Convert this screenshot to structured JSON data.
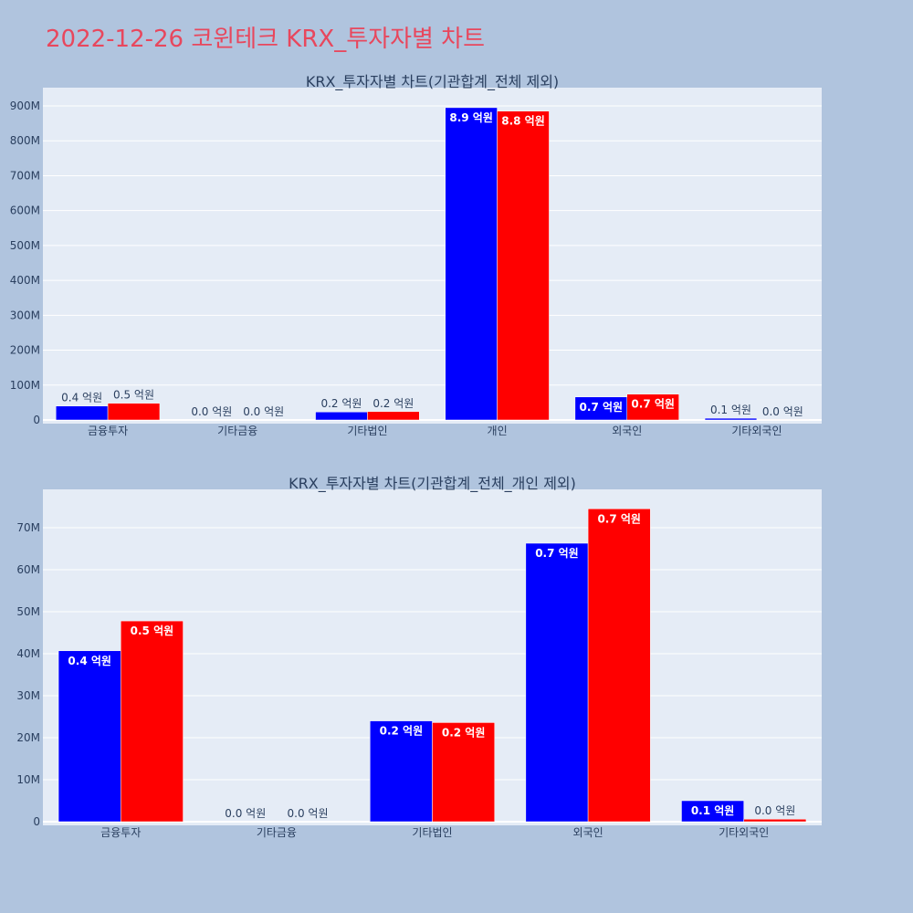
{
  "page_title": "2022-12-26 코윈테크 KRX_투자자별 차트",
  "colors": {
    "background": "#b0c4de",
    "plot_bg": "#e5ecf6",
    "series_a": "#0000ff",
    "series_b": "#ff0000",
    "title": "#e8475d"
  },
  "chart_data": [
    {
      "type": "bar",
      "title": "KRX_투자자별 차트(기관합계_전체 제외)",
      "categories": [
        "금융투자",
        "기타금융",
        "기타법인",
        "개인",
        "외국인",
        "기타외국인"
      ],
      "series": [
        {
          "values": [
            40000000,
            0,
            23000000,
            895000000,
            66000000,
            5000000
          ],
          "labels": [
            "0.4 억원",
            "0.0 억원",
            "0.2 억원",
            "8.9 억원",
            "0.7 억원",
            "0.1 억원"
          ]
        },
        {
          "values": [
            48000000,
            0,
            24000000,
            885000000,
            74000000,
            500000
          ],
          "labels": [
            "0.5 억원",
            "0.0 억원",
            "0.2 억원",
            "8.8 억원",
            "0.7 억원",
            "0.0 억원"
          ]
        }
      ],
      "ylim": [
        0,
        900000000
      ],
      "y_ticks": [
        0,
        100000000,
        200000000,
        300000000,
        400000000,
        500000000,
        600000000,
        700000000,
        800000000,
        900000000
      ],
      "y_tick_labels": [
        "0",
        "100M",
        "200M",
        "300M",
        "400M",
        "500M",
        "600M",
        "700M",
        "800M",
        "900M"
      ],
      "grid": true
    },
    {
      "type": "bar",
      "title": "KRX_투자자별 차트(기관합계_전체_개인 제외)",
      "categories": [
        "금융투자",
        "기타금융",
        "기타법인",
        "외국인",
        "기타외국인"
      ],
      "series": [
        {
          "values": [
            40700000,
            0,
            24000000,
            66300000,
            5000000
          ],
          "labels": [
            "0.4 억원",
            "0.0 억원",
            "0.2 억원",
            "0.7 억원",
            "0.1 억원"
          ]
        },
        {
          "values": [
            47800000,
            0,
            23600000,
            74500000,
            600000
          ],
          "labels": [
            "0.5 억원",
            "0.0 억원",
            "0.2 억원",
            "0.7 억원",
            "0.0 억원"
          ]
        }
      ],
      "ylim": [
        0,
        70000000
      ],
      "y_ticks": [
        0,
        10000000,
        20000000,
        30000000,
        40000000,
        50000000,
        60000000,
        70000000
      ],
      "y_tick_labels": [
        "0",
        "10M",
        "20M",
        "30M",
        "40M",
        "50M",
        "60M",
        "70M"
      ],
      "grid": true
    }
  ]
}
